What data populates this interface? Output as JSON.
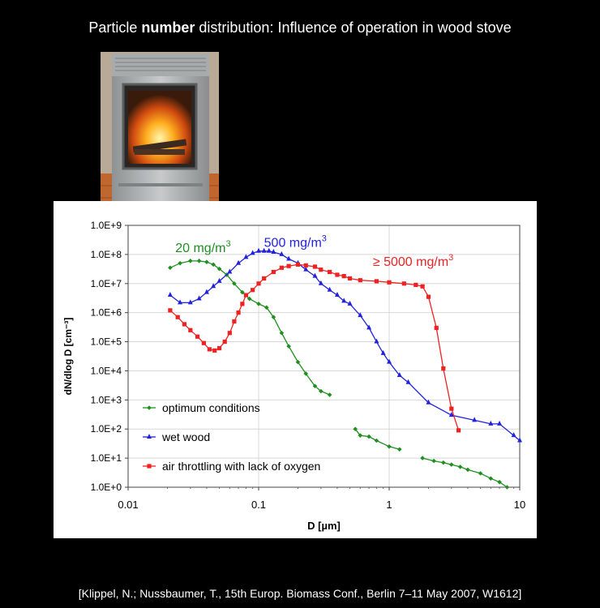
{
  "slide": {
    "title_pre": "Particle ",
    "title_bold": "number",
    "title_post": " distribution: Influence of operation in wood stove",
    "citation": "[Klippel, N.; Nussbaumer, T., 15th Europ. Biomass Conf., Berlin 7–11 May 2007, W1612]"
  },
  "photo": {
    "subject": "wood stove with fire"
  },
  "chart_data": {
    "type": "line",
    "xscale": "log",
    "yscale": "log",
    "xlim": [
      0.01,
      10
    ],
    "ylim": [
      1,
      1000000000
    ],
    "xlabel": "D [µm]",
    "ylabel": "dN/dlog D [cm⁻³]",
    "xticks": [
      {
        "v": 0.01,
        "label": "0.01"
      },
      {
        "v": 0.1,
        "label": "0.1"
      },
      {
        "v": 1,
        "label": "1"
      },
      {
        "v": 10,
        "label": "10"
      }
    ],
    "yticks": [
      {
        "v": 1,
        "label": "1.0E+0"
      },
      {
        "v": 10,
        "label": "1.0E+1"
      },
      {
        "v": 100,
        "label": "1.0E+2"
      },
      {
        "v": 1000,
        "label": "1.0E+3"
      },
      {
        "v": 10000,
        "label": "1.0E+4"
      },
      {
        "v": 100000,
        "label": "1.0E+5"
      },
      {
        "v": 1000000,
        "label": "1.0E+6"
      },
      {
        "v": 10000000,
        "label": "1.0E+7"
      },
      {
        "v": 100000000,
        "label": "1.0E+8"
      },
      {
        "v": 1000000000,
        "label": "1.0E+9"
      }
    ],
    "legend_position": "bottom-left",
    "annotations": [
      {
        "text": "20 mg/m",
        "sup": "3",
        "color": "#1f8f1f",
        "x": 0.023,
        "y": 120000000
      },
      {
        "text": "500 mg/m",
        "sup": "3",
        "color": "#2222dd",
        "x": 0.11,
        "y": 180000000
      },
      {
        "text": "≥ 5000 mg/m",
        "sup": "3",
        "color": "#ee2222",
        "x": 0.75,
        "y": 40000000
      }
    ],
    "series": [
      {
        "name": "optimum conditions",
        "color": "#1f8f1f",
        "marker": "diamond",
        "segments": [
          {
            "x": [
              0.021,
              0.025,
              0.03,
              0.035,
              0.04,
              0.045,
              0.05,
              0.057,
              0.065,
              0.075,
              0.085,
              0.1,
              0.115,
              0.13,
              0.15,
              0.17,
              0.2,
              0.23,
              0.27,
              0.3,
              0.35
            ],
            "y": [
              35000000,
              50000000,
              60000000,
              60000000,
              55000000,
              45000000,
              32000000,
              20000000,
              10000000,
              5000000,
              3000000,
              2000000,
              1500000,
              700000,
              200000,
              70000,
              20000,
              8000,
              3000,
              2000,
              1500
            ]
          },
          {
            "x": [
              0.55,
              0.6,
              0.7,
              0.8,
              1.0,
              1.2
            ],
            "y": [
              100,
              60,
              55,
              40,
              25,
              20
            ]
          },
          {
            "x": [
              1.8,
              2.2,
              2.6,
              3.0,
              3.5,
              4.0,
              5.0,
              6.0,
              7.0,
              8.0
            ],
            "y": [
              10,
              8,
              7,
              6,
              5,
              4,
              3,
              2,
              1.5,
              1
            ]
          }
        ]
      },
      {
        "name": "wet wood",
        "color": "#2222dd",
        "marker": "triangle",
        "segments": [
          {
            "x": [
              0.021,
              0.025,
              0.03,
              0.035,
              0.04,
              0.045,
              0.05,
              0.06,
              0.07,
              0.08,
              0.09,
              0.1,
              0.11,
              0.12,
              0.13,
              0.15,
              0.17,
              0.2,
              0.23,
              0.27,
              0.3,
              0.35,
              0.4,
              0.45,
              0.5,
              0.6,
              0.7,
              0.8,
              0.9,
              1.0,
              1.2,
              1.4,
              2.0,
              3.0,
              4.5,
              6.0,
              7.0,
              9.0,
              10.0
            ],
            "y": [
              4000000,
              2200000,
              2200000,
              3000000,
              5000000,
              8000000,
              12000000,
              25000000,
              50000000,
              80000000,
              110000000,
              130000000,
              130000000,
              130000000,
              120000000,
              100000000,
              70000000,
              50000000,
              30000000,
              18000000,
              10000000,
              6000000,
              4000000,
              2500000,
              2000000,
              800000,
              300000,
              100000,
              40000,
              20000,
              7000,
              4000,
              800,
              300,
              200,
              150,
              150,
              60,
              40
            ]
          }
        ]
      },
      {
        "name": "air throttling with lack of oxygen",
        "color": "#ee2222",
        "marker": "square",
        "segments": [
          {
            "x": [
              0.021,
              0.024,
              0.027,
              0.03,
              0.034,
              0.038,
              0.042,
              0.046,
              0.05,
              0.055,
              0.06,
              0.065,
              0.07,
              0.075,
              0.08,
              0.09,
              0.1,
              0.11,
              0.13,
              0.15,
              0.17,
              0.2,
              0.23,
              0.27,
              0.3,
              0.35,
              0.4,
              0.45,
              0.5,
              0.6,
              0.8,
              1.0,
              1.3,
              1.6,
              1.8,
              2.0,
              2.3,
              2.6,
              3.0,
              3.4
            ],
            "y": [
              1200000,
              700000,
              400000,
              250000,
              150000,
              90000,
              55000,
              50000,
              60000,
              100000,
              200000,
              500000,
              1000000,
              2000000,
              4000000,
              6000000,
              10000000,
              15000000,
              25000000,
              35000000,
              40000000,
              45000000,
              42000000,
              38000000,
              30000000,
              25000000,
              20000000,
              18000000,
              15000000,
              13000000,
              12000000,
              11000000,
              10000000,
              9000000,
              8000000,
              3500000,
              300000,
              12000,
              500,
              90
            ]
          }
        ]
      }
    ]
  }
}
